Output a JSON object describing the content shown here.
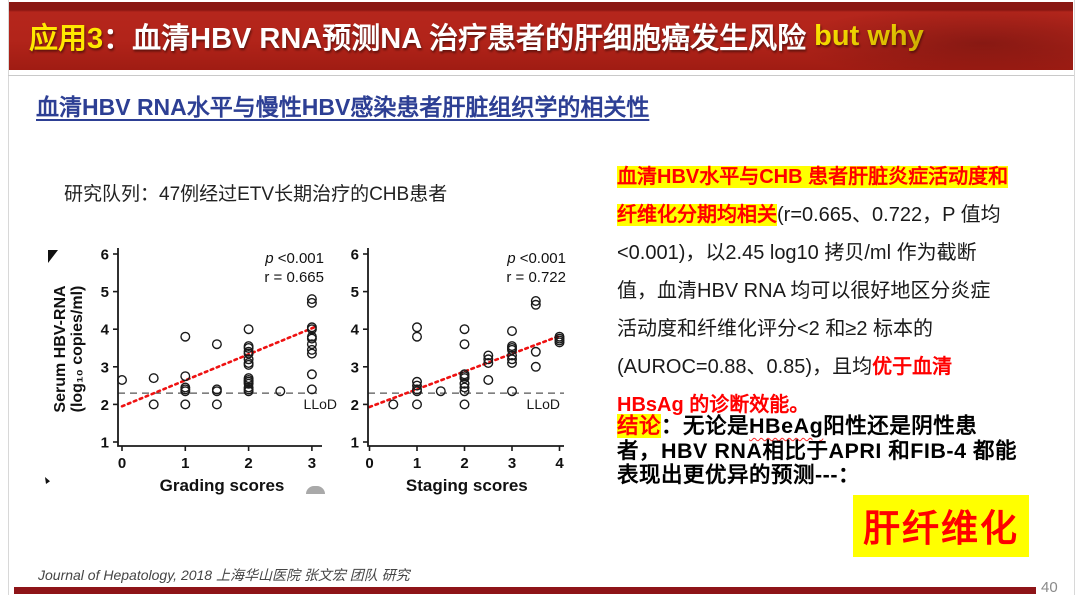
{
  "header": {
    "prefix": "应用3",
    "title": "：血清HBV RNA预测NA 治疗患者的肝细胞癌发生风险",
    "suffix": " but why"
  },
  "subtitle": "血清HBV RNA水平与慢性HBV感染患者肝脏组织学的相关性",
  "cohort_line": "研究队列：47例经过ETV长期治疗的CHB患者",
  "right_panel": {
    "para_segments": [
      {
        "style": "hlred",
        "text": "血清HBV水平与CHB 患者肝脏炎症活动度和纤维化分期均相关"
      },
      {
        "style": "plain",
        "text": "(r=0.665、0.722，P 值均 <0.001)，以2.45 log10 拷贝/ml 作为截断值，血清HBV RNA 均可以很好地区分炎症活动度和纤维化评分<2 和≥2 标本的(AUROC=0.88、0.85)，且均"
      },
      {
        "style": "redbold",
        "text": "优于血清HBsAg 的诊断效能。"
      }
    ],
    "conclusion_segments": [
      {
        "style": "hlred",
        "text": "结论"
      },
      {
        "style": "bold",
        "text": "：无论是"
      },
      {
        "style": "boldwavy",
        "text": "HBeAg"
      },
      {
        "style": "bold",
        "text": "阳性还是阴性患者，HBV RNA相比于APRI 和FIB-4 都能表现出更优异的预测---："
      }
    ],
    "final_highlight": "肝纤维化"
  },
  "footer": {
    "citation": "Journal of Hepatology, 2018 上海华山医院 张文宏 团队 研究",
    "page_number": "40"
  },
  "colors": {
    "header_bg": "#b2241a",
    "header_accent": "#ffe800",
    "subtitle_blue": "#2d3f94",
    "highlight_yellow": "#ffff00",
    "emphasis_red": "#ff0000",
    "bottom_bar": "#8e1418",
    "trend_red": "#ee1111"
  },
  "chart_data": [
    {
      "type": "scatter",
      "xlabel": "Grading scores",
      "ylabel": "Serum HBV-RNA (log₁₀ copies/ml)",
      "ylabel_lines": [
        "Serum HBV-RNA",
        "(log₁₀ copies/ml)"
      ],
      "xlim": [
        0,
        3
      ],
      "ylim": [
        1,
        6
      ],
      "xticks": [
        0,
        1,
        2,
        3
      ],
      "yticks": [
        1,
        2,
        3,
        4,
        5,
        6
      ],
      "annotations": [
        "p <0.001",
        "r = 0.665"
      ],
      "llod": {
        "y": 2.3,
        "label": "LLoD"
      },
      "trend": [
        [
          0,
          1.95
        ],
        [
          3.08,
          4.08
        ]
      ],
      "points": [
        [
          0,
          2.65
        ],
        [
          0.5,
          2.7
        ],
        [
          0.5,
          2.0
        ],
        [
          1,
          3.8
        ],
        [
          1,
          2.75
        ],
        [
          1,
          2.45
        ],
        [
          1,
          2.4
        ],
        [
          1,
          2.35
        ],
        [
          1,
          2.0
        ],
        [
          1.5,
          3.6
        ],
        [
          1.5,
          2.4
        ],
        [
          1.5,
          2.35
        ],
        [
          1.5,
          2.0
        ],
        [
          2,
          4.0
        ],
        [
          2,
          3.55
        ],
        [
          2,
          3.5
        ],
        [
          2,
          3.4
        ],
        [
          2,
          3.35
        ],
        [
          2,
          3.2
        ],
        [
          2,
          3.1
        ],
        [
          2,
          3.05
        ],
        [
          2,
          2.7
        ],
        [
          2,
          2.65
        ],
        [
          2,
          2.6
        ],
        [
          2,
          2.55
        ],
        [
          2,
          2.45
        ],
        [
          2,
          2.4
        ],
        [
          2,
          2.35
        ],
        [
          2.5,
          2.35
        ],
        [
          3,
          4.8
        ],
        [
          3,
          4.7
        ],
        [
          3,
          4.05
        ],
        [
          3,
          4.0
        ],
        [
          3,
          3.8
        ],
        [
          3,
          3.75
        ],
        [
          3,
          3.6
        ],
        [
          3,
          3.45
        ],
        [
          3,
          3.35
        ],
        [
          3,
          2.8
        ],
        [
          3,
          2.4
        ]
      ]
    },
    {
      "type": "scatter",
      "xlabel": "Staging scores",
      "ylabel": "Serum HBV-RNA (log₁₀ copies/ml)",
      "ylabel_lines": [
        "Serum HBV-RNA",
        "(log₁₀ copies/ml)"
      ],
      "xlim": [
        0,
        4
      ],
      "ylim": [
        1,
        6
      ],
      "xticks": [
        0,
        1,
        2,
        3,
        4
      ],
      "yticks": [
        1,
        2,
        3,
        4,
        5,
        6
      ],
      "annotations": [
        "p <0.001",
        "r = 0.722"
      ],
      "llod": {
        "y": 2.3,
        "label": "LLoD"
      },
      "trend": [
        [
          0,
          1.93
        ],
        [
          4,
          3.82
        ]
      ],
      "points": [
        [
          0.5,
          2.0
        ],
        [
          1,
          4.05
        ],
        [
          1,
          3.8
        ],
        [
          1,
          2.6
        ],
        [
          1,
          2.5
        ],
        [
          1,
          2.4
        ],
        [
          1,
          2.35
        ],
        [
          1,
          2.0
        ],
        [
          1.5,
          2.35
        ],
        [
          2,
          4.0
        ],
        [
          2,
          3.6
        ],
        [
          2,
          2.8
        ],
        [
          2,
          2.75
        ],
        [
          2,
          2.7
        ],
        [
          2,
          2.55
        ],
        [
          2,
          2.45
        ],
        [
          2,
          2.35
        ],
        [
          2,
          2.0
        ],
        [
          2.5,
          3.3
        ],
        [
          2.5,
          3.2
        ],
        [
          2.5,
          3.1
        ],
        [
          2.5,
          2.65
        ],
        [
          3,
          3.95
        ],
        [
          3,
          3.55
        ],
        [
          3,
          3.5
        ],
        [
          3,
          3.45
        ],
        [
          3,
          3.3
        ],
        [
          3,
          3.2
        ],
        [
          3,
          3.1
        ],
        [
          3,
          2.35
        ],
        [
          3.5,
          4.75
        ],
        [
          3.5,
          4.65
        ],
        [
          3.5,
          3.4
        ],
        [
          3.5,
          3.0
        ],
        [
          4,
          3.8
        ],
        [
          4,
          3.75
        ],
        [
          4,
          3.7
        ],
        [
          4,
          3.65
        ]
      ]
    }
  ]
}
